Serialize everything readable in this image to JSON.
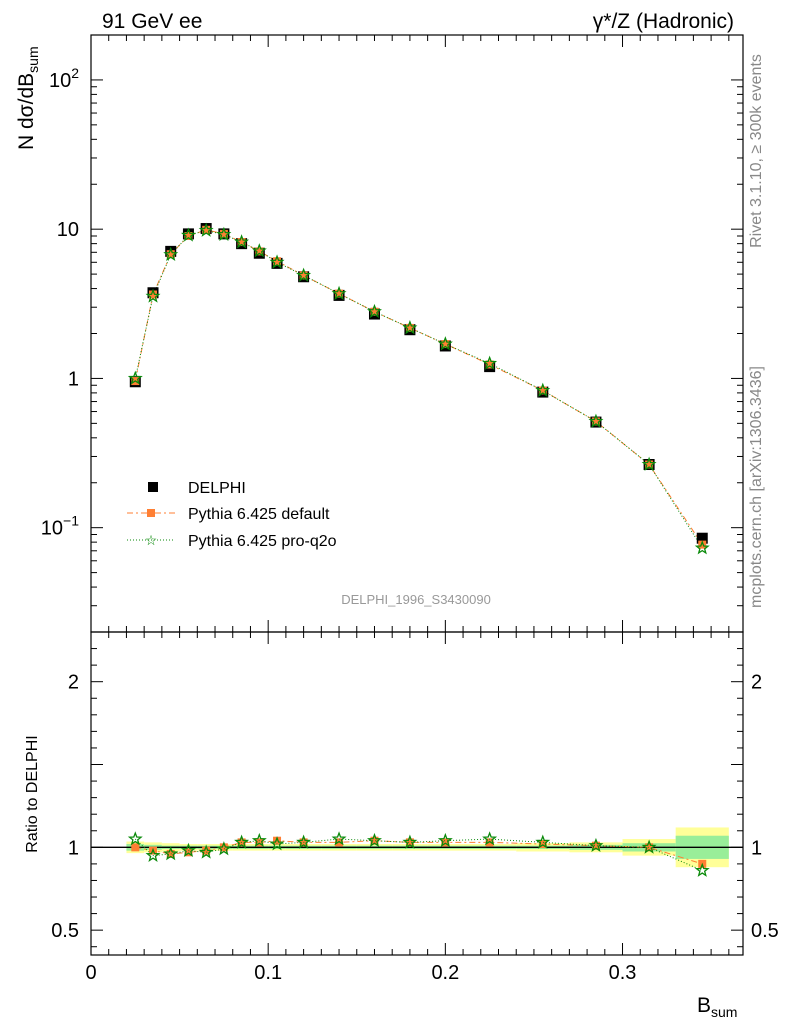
{
  "header": {
    "left": "91 GeV ee",
    "right": "γ*/Z (Hadronic)"
  },
  "side_text": {
    "rivet": "Rivet 3.1.10, ≥ 300k events",
    "mcplots": "mcplots.cern.ch [arXiv:1306.3436]"
  },
  "watermark": "DELPHI_1996_S3430090",
  "chart_data": [
    {
      "type": "scatter",
      "panel": "main",
      "ylabel": "N dσ/dB_sum",
      "yscale": "log",
      "ylim": [
        0.02,
        200
      ],
      "xlim": [
        0,
        0.368
      ],
      "y_tick_labels": [
        "10^-1",
        "1",
        "10",
        "10^2"
      ],
      "legend": {
        "placement": "lower-left",
        "entries": [
          "DELPHI",
          "Pythia 6.425 default",
          "Pythia 6.425 pro-q2o"
        ]
      },
      "x": [
        0.025,
        0.035,
        0.045,
        0.055,
        0.065,
        0.075,
        0.085,
        0.095,
        0.105,
        0.12,
        0.14,
        0.16,
        0.18,
        0.2,
        0.225,
        0.255,
        0.285,
        0.315,
        0.345
      ],
      "series": [
        {
          "name": "DELPHI",
          "color": "#000000",
          "marker": "square",
          "values": [
            0.95,
            3.75,
            7.1,
            9.3,
            10.1,
            9.3,
            8.0,
            6.9,
            5.9,
            4.8,
            3.6,
            2.7,
            2.12,
            1.65,
            1.2,
            0.81,
            0.51,
            0.265,
            0.085
          ]
        },
        {
          "name": "Pythia 6.425 default",
          "color": "#ff7f33",
          "marker": "square",
          "line": "dash-dot",
          "values": [
            0.96,
            3.65,
            6.8,
            9.0,
            9.9,
            9.3,
            8.2,
            7.1,
            6.1,
            4.9,
            3.7,
            2.8,
            2.18,
            1.7,
            1.24,
            0.83,
            0.515,
            0.265,
            0.077
          ]
        },
        {
          "name": "Pythia 6.425 pro-q2o",
          "color": "#0a8a0a",
          "marker": "star",
          "line": "dotted",
          "values": [
            1.0,
            3.55,
            6.75,
            9.1,
            9.8,
            9.2,
            8.2,
            7.15,
            6.0,
            4.9,
            3.7,
            2.8,
            2.18,
            1.7,
            1.26,
            0.83,
            0.515,
            0.265,
            0.073
          ]
        }
      ]
    },
    {
      "type": "scatter",
      "panel": "ratio",
      "ylabel": "Ratio to DELPHI",
      "xlabel": "B_sum",
      "ylim": [
        0.35,
        2.3
      ],
      "xlim": [
        0,
        0.368
      ],
      "x_tick_labels": [
        "0",
        "0.1",
        "0.2",
        "0.3"
      ],
      "y_tick_labels": [
        "0.5",
        "1",
        "2"
      ],
      "band_edges": [
        0.02,
        0.03,
        0.04,
        0.05,
        0.06,
        0.07,
        0.08,
        0.09,
        0.1,
        0.11,
        0.13,
        0.15,
        0.17,
        0.19,
        0.21,
        0.24,
        0.27,
        0.3,
        0.33,
        0.36
      ],
      "band_inner": [
        0.02,
        0.015,
        0.01,
        0.01,
        0.01,
        0.01,
        0.01,
        0.01,
        0.01,
        0.01,
        0.01,
        0.01,
        0.01,
        0.01,
        0.01,
        0.01,
        0.015,
        0.025,
        0.07
      ],
      "band_outer": [
        0.035,
        0.03,
        0.025,
        0.02,
        0.02,
        0.02,
        0.02,
        0.02,
        0.02,
        0.02,
        0.02,
        0.02,
        0.02,
        0.02,
        0.02,
        0.025,
        0.03,
        0.05,
        0.12
      ],
      "x": [
        0.025,
        0.035,
        0.045,
        0.055,
        0.065,
        0.075,
        0.085,
        0.095,
        0.105,
        0.12,
        0.14,
        0.16,
        0.18,
        0.2,
        0.225,
        0.255,
        0.285,
        0.315,
        0.345
      ],
      "series": [
        {
          "name": "Pythia 6.425 default",
          "color": "#ff7f33",
          "marker": "square",
          "line": "dash-dot",
          "values": [
            1.0,
            0.98,
            0.96,
            0.97,
            0.98,
            1.0,
            1.03,
            1.03,
            1.04,
            1.03,
            1.03,
            1.04,
            1.03,
            1.03,
            1.03,
            1.02,
            1.01,
            1.0,
            0.9
          ]
        },
        {
          "name": "Pythia 6.425 pro-q2o",
          "color": "#0a8a0a",
          "marker": "star",
          "line": "dotted",
          "values": [
            1.05,
            0.95,
            0.96,
            0.98,
            0.97,
            0.99,
            1.03,
            1.04,
            1.02,
            1.03,
            1.05,
            1.04,
            1.03,
            1.04,
            1.05,
            1.03,
            1.01,
            1.0,
            0.86
          ]
        }
      ]
    }
  ]
}
